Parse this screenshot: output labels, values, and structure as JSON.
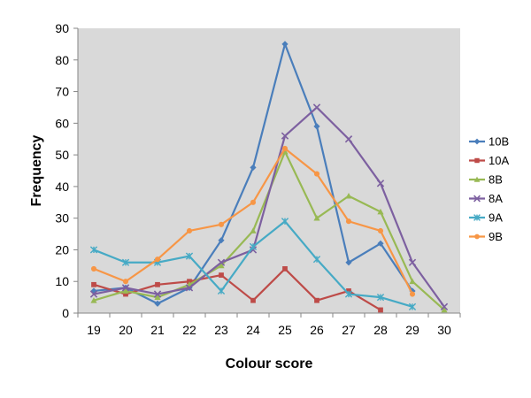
{
  "chart_data": {
    "type": "line",
    "title": "",
    "xlabel": "Colour score",
    "ylabel": "Frequency",
    "x": [
      19,
      20,
      21,
      22,
      23,
      24,
      25,
      26,
      27,
      28,
      29,
      30
    ],
    "ylim": [
      0,
      90
    ],
    "yticks": [
      0,
      10,
      20,
      30,
      40,
      50,
      60,
      70,
      80,
      90
    ],
    "grid": false,
    "legend_position": "right",
    "plot_background": "#d9d9d9",
    "series": [
      {
        "name": "10B",
        "color": "#4a7ebb",
        "marker": "diamond",
        "points": [
          [
            19,
            7
          ],
          [
            20,
            8
          ],
          [
            21,
            3
          ],
          [
            22,
            8
          ],
          [
            23,
            23
          ],
          [
            24,
            46
          ],
          [
            25,
            85
          ],
          [
            26,
            59
          ],
          [
            27,
            16
          ],
          [
            28,
            22
          ],
          [
            29,
            7
          ]
        ]
      },
      {
        "name": "10A",
        "color": "#be4b48",
        "marker": "square",
        "points": [
          [
            19,
            9
          ],
          [
            20,
            6
          ],
          [
            21,
            9
          ],
          [
            22,
            10
          ],
          [
            23,
            12
          ],
          [
            24,
            4
          ],
          [
            25,
            14
          ],
          [
            26,
            4
          ],
          [
            27,
            7
          ],
          [
            28,
            1
          ]
        ]
      },
      {
        "name": "8B",
        "color": "#98b954",
        "marker": "triangle",
        "points": [
          [
            19,
            4
          ],
          [
            20,
            7
          ],
          [
            21,
            5
          ],
          [
            22,
            9
          ],
          [
            23,
            15
          ],
          [
            24,
            26
          ],
          [
            25,
            51
          ],
          [
            26,
            30
          ],
          [
            27,
            37
          ],
          [
            28,
            32
          ],
          [
            29,
            10
          ],
          [
            30,
            1
          ]
        ]
      },
      {
        "name": "8A",
        "color": "#7d60a0",
        "marker": "x",
        "points": [
          [
            19,
            6
          ],
          [
            20,
            8
          ],
          [
            21,
            6
          ],
          [
            22,
            8
          ],
          [
            23,
            16
          ],
          [
            24,
            20
          ],
          [
            25,
            56
          ],
          [
            26,
            65
          ],
          [
            27,
            55
          ],
          [
            28,
            41
          ],
          [
            29,
            16
          ],
          [
            30,
            2
          ]
        ]
      },
      {
        "name": "9A",
        "color": "#46aac5",
        "marker": "star",
        "points": [
          [
            19,
            20
          ],
          [
            20,
            16
          ],
          [
            21,
            16
          ],
          [
            22,
            18
          ],
          [
            23,
            7
          ],
          [
            24,
            21
          ],
          [
            25,
            29
          ],
          [
            26,
            17
          ],
          [
            27,
            6
          ],
          [
            28,
            5
          ],
          [
            29,
            2
          ]
        ]
      },
      {
        "name": "9B",
        "color": "#f79646",
        "marker": "circle",
        "points": [
          [
            19,
            14
          ],
          [
            20,
            10
          ],
          [
            21,
            17
          ],
          [
            22,
            26
          ],
          [
            23,
            28
          ],
          [
            24,
            35
          ],
          [
            25,
            52
          ],
          [
            26,
            44
          ],
          [
            27,
            29
          ],
          [
            28,
            26
          ],
          [
            29,
            6
          ]
        ]
      }
    ]
  }
}
